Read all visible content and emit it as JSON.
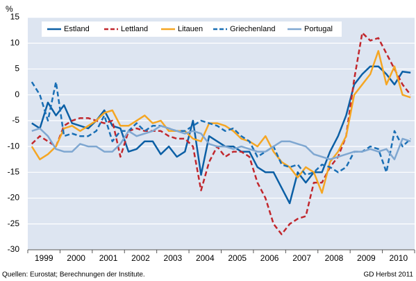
{
  "chart_data": {
    "type": "line",
    "y_label": "%",
    "source": "Quellen: Eurostat; Berechnungen der Institute.",
    "note": "GD Herbst 2011",
    "categories": [
      null,
      "1999",
      null,
      null,
      null,
      "2000",
      null,
      null,
      null,
      "2001",
      null,
      null,
      null,
      "2002",
      null,
      null,
      null,
      "2003",
      null,
      null,
      null,
      "2004",
      null,
      null,
      null,
      "2005",
      null,
      null,
      null,
      "2006",
      null,
      null,
      null,
      "2007",
      null,
      null,
      null,
      "2008",
      null,
      null,
      null,
      "2009",
      null,
      null,
      null,
      "2010",
      null,
      null
    ],
    "series": [
      {
        "name": "Estland",
        "color": "#0b5fa5",
        "style": "solid",
        "values": [
          -5.5,
          -6.5,
          -1.5,
          -4,
          -2,
          -5.5,
          -6,
          -6.5,
          -5,
          -3,
          -6,
          -6.5,
          -11,
          -10.5,
          -9,
          -9,
          -11.5,
          -10,
          -12,
          -11,
          -5,
          -15.5,
          -8,
          -9,
          -10,
          -10,
          -11,
          -11,
          -14,
          -15,
          -15,
          -18,
          -21,
          -15,
          -17,
          -15,
          -15,
          -11,
          -8,
          -4,
          2,
          4,
          5.5,
          5.5,
          4,
          2,
          4.5,
          4.3
        ]
      },
      {
        "name": "Lettland",
        "color": "#c1272d",
        "style": "dashed",
        "values": [
          -9.5,
          -8,
          -9,
          -10,
          -6,
          -5,
          -4.5,
          -4.5,
          -5,
          -5.5,
          -5,
          -12,
          -7,
          -6.5,
          -7,
          -7,
          -7,
          -8,
          -8.5,
          -8.5,
          -10,
          -18.5,
          -13,
          -10,
          -12,
          -11,
          -11,
          -12,
          -17,
          -20,
          -25,
          -27,
          -25,
          -24,
          -23.5,
          -17,
          -17,
          -14,
          -12,
          -8,
          3,
          12,
          10.5,
          11,
          8,
          5,
          2,
          0
        ]
      },
      {
        "name": "Litauen",
        "color": "#f5a623",
        "style": "solid",
        "values": [
          -10,
          -12.5,
          -11.5,
          -10,
          -6.5,
          -6,
          -7,
          -6,
          -5,
          -3.5,
          -3,
          -6,
          -6,
          -5,
          -4,
          -5.5,
          -5,
          -7,
          -7,
          -7,
          -8.5,
          -9,
          -5.5,
          -5.5,
          -6,
          -7,
          -8.5,
          -9,
          -10,
          -8,
          -11,
          -13,
          -14,
          -16,
          -14,
          -15,
          -19,
          -13,
          -11,
          -8,
          0,
          2,
          4,
          8.5,
          2,
          5.5,
          0,
          -0.5
        ]
      },
      {
        "name": "Griechenland",
        "color": "#1a6fb5",
        "style": "dashed",
        "values": [
          2.5,
          0,
          -5,
          2.5,
          -8,
          -7.5,
          -8,
          -8,
          -7,
          -4,
          -9,
          -7,
          -7,
          -5.5,
          -7,
          -6,
          -6,
          -6.5,
          -7,
          -7,
          -6,
          -5,
          -5.5,
          -6,
          -7,
          -6.5,
          -8,
          -9,
          -12,
          -11,
          -10,
          -13.5,
          -14,
          -13.5,
          -15.5,
          -15,
          -13.5,
          -14,
          -15,
          -14,
          -11,
          -11,
          -10,
          -10.5,
          -15,
          -7,
          -10,
          -8.5
        ]
      },
      {
        "name": "Portugal",
        "color": "#7fa7d1",
        "style": "solid",
        "values": [
          -7,
          -6.5,
          -8,
          -10.5,
          -11,
          -11,
          -9.5,
          -10,
          -10,
          -11,
          -11,
          -9.5,
          -7,
          -8,
          -7.5,
          -7,
          -6,
          -6.5,
          -7,
          -7.5,
          -7,
          -7.5,
          -9.5,
          -10,
          -10,
          -10.5,
          -10,
          -10.5,
          -11,
          -11,
          -10,
          -9,
          -9,
          -9.5,
          -10,
          -11.5,
          -12,
          -12.5,
          -12,
          -11.5,
          -11,
          -11,
          -10.5,
          -11,
          -10.5,
          -12.5,
          -8.5,
          -9
        ]
      }
    ],
    "ylim": [
      -30,
      15
    ],
    "yticks": [
      -30,
      -25,
      -20,
      -15,
      -10,
      -5,
      0,
      5,
      10,
      15
    ],
    "grid": true
  }
}
